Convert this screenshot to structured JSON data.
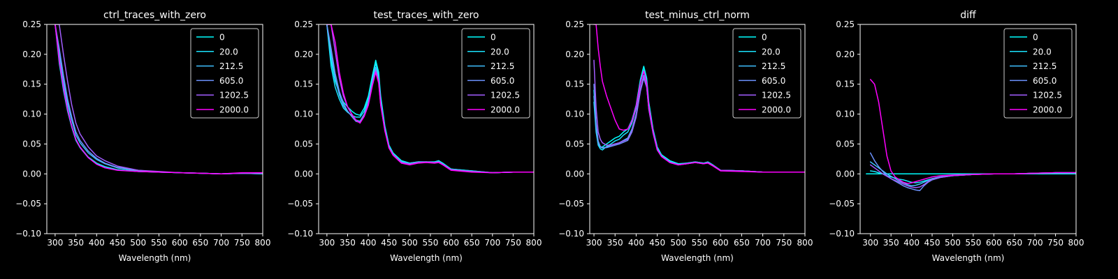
{
  "figure": {
    "background": "#000000",
    "foreground": "#ffffff"
  },
  "legend_labels": [
    "0",
    "20.0",
    "212.5",
    "605.0",
    "1202.5",
    "2000.0"
  ],
  "series_colors": [
    "#00ffff",
    "#1ae5ff",
    "#3fc0ff",
    "#6c93ff",
    "#a25dff",
    "#ff00ff"
  ],
  "chart_data": [
    {
      "type": "line",
      "title": "ctrl_traces_with_zero",
      "xlabel": "Wavelength (nm)",
      "ylabel": "",
      "xlim": [
        280,
        800
      ],
      "ylim": [
        -0.1,
        0.25
      ],
      "xticks": [
        300,
        350,
        400,
        450,
        500,
        550,
        600,
        650,
        700,
        750,
        800
      ],
      "yticks": [
        -0.1,
        -0.05,
        0.0,
        0.05,
        0.1,
        0.15,
        0.2,
        0.25
      ],
      "xtick_labels": [
        "300",
        "350",
        "400",
        "450",
        "500",
        "550",
        "600",
        "650",
        "700",
        "750",
        "800"
      ],
      "ytick_labels": [
        "−0.10",
        "−0.05",
        "0.00",
        "0.05",
        "0.10",
        "0.15",
        "0.20",
        "0.25"
      ],
      "grid": false,
      "legend": "upper right",
      "x": [
        300,
        310,
        320,
        330,
        340,
        350,
        360,
        380,
        400,
        420,
        450,
        500,
        550,
        600,
        650,
        700,
        750,
        800
      ],
      "series": [
        {
          "name": "0",
          "values": [
            0.25,
            0.2,
            0.15,
            0.11,
            0.08,
            0.058,
            0.045,
            0.028,
            0.018,
            0.012,
            0.007,
            0.004,
            0.003,
            0.002,
            0.001,
            0.0,
            0.001,
            0.0
          ]
        },
        {
          "name": "20.0",
          "values": [
            0.25,
            0.185,
            0.14,
            0.105,
            0.078,
            0.056,
            0.044,
            0.027,
            0.017,
            0.012,
            0.007,
            0.004,
            0.003,
            0.002,
            0.001,
            0.0,
            0.001,
            0.0
          ]
        },
        {
          "name": "212.5",
          "values": [
            0.25,
            0.2,
            0.155,
            0.118,
            0.09,
            0.065,
            0.052,
            0.035,
            0.024,
            0.017,
            0.01,
            0.005,
            0.003,
            0.002,
            0.001,
            0.0,
            0.001,
            0.001
          ]
        },
        {
          "name": "605.0",
          "values": [
            0.25,
            0.21,
            0.165,
            0.125,
            0.095,
            0.07,
            0.056,
            0.038,
            0.026,
            0.018,
            0.011,
            0.006,
            0.003,
            0.002,
            0.001,
            0.0,
            0.001,
            0.001
          ]
        },
        {
          "name": "1202.5",
          "values": [
            0.25,
            0.25,
            0.2,
            0.155,
            0.115,
            0.085,
            0.067,
            0.045,
            0.03,
            0.022,
            0.013,
            0.006,
            0.004,
            0.002,
            0.001,
            0.0,
            0.001,
            0.001
          ]
        },
        {
          "name": "2000.0",
          "values": [
            0.25,
            0.19,
            0.145,
            0.108,
            0.08,
            0.058,
            0.045,
            0.027,
            0.016,
            0.01,
            0.006,
            0.004,
            0.003,
            0.002,
            0.001,
            0.0,
            0.002,
            0.002
          ]
        }
      ]
    },
    {
      "type": "line",
      "title": "test_traces_with_zero",
      "xlabel": "Wavelength (nm)",
      "ylabel": "",
      "xlim": [
        280,
        800
      ],
      "ylim": [
        -0.1,
        0.25
      ],
      "xticks": [
        300,
        350,
        400,
        450,
        500,
        550,
        600,
        650,
        700,
        750,
        800
      ],
      "yticks": [
        -0.1,
        -0.05,
        0.0,
        0.05,
        0.1,
        0.15,
        0.2,
        0.25
      ],
      "xtick_labels": [
        "300",
        "350",
        "400",
        "450",
        "500",
        "550",
        "600",
        "650",
        "700",
        "750",
        "800"
      ],
      "ytick_labels": [
        "−0.10",
        "−0.05",
        "0.00",
        "0.05",
        "0.10",
        "0.15",
        "0.20",
        "0.25"
      ],
      "grid": false,
      "legend": "upper right",
      "x": [
        300,
        310,
        320,
        330,
        340,
        350,
        360,
        370,
        380,
        390,
        400,
        410,
        418,
        425,
        430,
        440,
        450,
        460,
        480,
        500,
        520,
        540,
        560,
        570,
        580,
        600,
        650,
        700,
        750,
        800
      ],
      "series": [
        {
          "name": "0",
          "values": [
            0.25,
            0.19,
            0.155,
            0.135,
            0.12,
            0.112,
            0.105,
            0.1,
            0.098,
            0.11,
            0.13,
            0.165,
            0.19,
            0.17,
            0.13,
            0.08,
            0.048,
            0.035,
            0.022,
            0.018,
            0.02,
            0.02,
            0.02,
            0.022,
            0.018,
            0.008,
            0.005,
            0.002,
            0.003,
            0.003
          ]
        },
        {
          "name": "20.0",
          "values": [
            0.25,
            0.18,
            0.145,
            0.125,
            0.11,
            0.103,
            0.098,
            0.095,
            0.095,
            0.105,
            0.125,
            0.16,
            0.185,
            0.165,
            0.125,
            0.078,
            0.047,
            0.034,
            0.021,
            0.018,
            0.02,
            0.02,
            0.02,
            0.021,
            0.017,
            0.008,
            0.005,
            0.002,
            0.003,
            0.003
          ]
        },
        {
          "name": "212.5",
          "values": [
            0.25,
            0.2,
            0.16,
            0.132,
            0.114,
            0.104,
            0.097,
            0.09,
            0.088,
            0.1,
            0.12,
            0.155,
            0.178,
            0.16,
            0.12,
            0.075,
            0.045,
            0.033,
            0.02,
            0.017,
            0.02,
            0.02,
            0.019,
            0.02,
            0.016,
            0.007,
            0.004,
            0.002,
            0.003,
            0.003
          ]
        },
        {
          "name": "605.0",
          "values": [
            0.25,
            0.21,
            0.168,
            0.138,
            0.118,
            0.105,
            0.096,
            0.088,
            0.086,
            0.098,
            0.118,
            0.152,
            0.175,
            0.157,
            0.118,
            0.074,
            0.044,
            0.032,
            0.019,
            0.017,
            0.019,
            0.02,
            0.019,
            0.02,
            0.016,
            0.007,
            0.004,
            0.002,
            0.003,
            0.003
          ]
        },
        {
          "name": "1202.5",
          "values": [
            0.25,
            0.25,
            0.205,
            0.16,
            0.13,
            0.112,
            0.1,
            0.09,
            0.085,
            0.097,
            0.115,
            0.15,
            0.172,
            0.155,
            0.116,
            0.073,
            0.044,
            0.032,
            0.019,
            0.016,
            0.019,
            0.02,
            0.019,
            0.02,
            0.016,
            0.007,
            0.004,
            0.002,
            0.003,
            0.003
          ]
        },
        {
          "name": "2000.0",
          "values": [
            0.25,
            0.25,
            0.22,
            0.17,
            0.135,
            0.112,
            0.1,
            0.09,
            0.085,
            0.096,
            0.115,
            0.148,
            0.17,
            0.152,
            0.115,
            0.072,
            0.043,
            0.031,
            0.018,
            0.015,
            0.018,
            0.019,
            0.018,
            0.019,
            0.015,
            0.006,
            0.003,
            0.002,
            0.003,
            0.003
          ]
        }
      ]
    },
    {
      "type": "line",
      "title": "test_minus_ctrl_norm",
      "xlabel": "Wavelength (nm)",
      "ylabel": "",
      "xlim": [
        290,
        800
      ],
      "ylim": [
        -0.1,
        0.25
      ],
      "xticks": [
        300,
        350,
        400,
        450,
        500,
        550,
        600,
        650,
        700,
        750,
        800
      ],
      "yticks": [
        -0.1,
        -0.05,
        0.0,
        0.05,
        0.1,
        0.15,
        0.2,
        0.25
      ],
      "xtick_labels": [
        "300",
        "350",
        "400",
        "450",
        "500",
        "550",
        "600",
        "650",
        "700",
        "750",
        "800"
      ],
      "ytick_labels": [
        "−0.10",
        "−0.05",
        "0.00",
        "0.05",
        "0.10",
        "0.15",
        "0.20",
        "0.25"
      ],
      "grid": false,
      "legend": "upper right",
      "x": [
        300,
        305,
        310,
        315,
        320,
        330,
        340,
        350,
        360,
        370,
        380,
        390,
        400,
        410,
        418,
        425,
        430,
        440,
        450,
        460,
        480,
        500,
        520,
        540,
        560,
        570,
        580,
        600,
        650,
        700,
        750,
        800
      ],
      "series": [
        {
          "name": "0",
          "values": [
            0.14,
            0.08,
            0.052,
            0.045,
            0.045,
            0.05,
            0.055,
            0.06,
            0.063,
            0.07,
            0.075,
            0.09,
            0.115,
            0.158,
            0.18,
            0.16,
            0.12,
            0.075,
            0.045,
            0.032,
            0.022,
            0.017,
            0.018,
            0.02,
            0.018,
            0.02,
            0.016,
            0.006,
            0.005,
            0.003,
            0.003,
            0.003
          ]
        },
        {
          "name": "20.0",
          "values": [
            0.12,
            0.07,
            0.048,
            0.042,
            0.04,
            0.046,
            0.05,
            0.055,
            0.058,
            0.065,
            0.07,
            0.085,
            0.11,
            0.152,
            0.174,
            0.155,
            0.115,
            0.072,
            0.043,
            0.031,
            0.021,
            0.016,
            0.018,
            0.02,
            0.018,
            0.019,
            0.015,
            0.006,
            0.005,
            0.003,
            0.003,
            0.003
          ]
        },
        {
          "name": "212.5",
          "values": [
            0.13,
            0.075,
            0.05,
            0.045,
            0.043,
            0.045,
            0.048,
            0.05,
            0.052,
            0.056,
            0.06,
            0.075,
            0.1,
            0.142,
            0.165,
            0.148,
            0.11,
            0.07,
            0.041,
            0.03,
            0.02,
            0.016,
            0.017,
            0.02,
            0.017,
            0.019,
            0.015,
            0.006,
            0.005,
            0.003,
            0.003,
            0.003
          ]
        },
        {
          "name": "605.0",
          "values": [
            0.15,
            0.085,
            0.055,
            0.046,
            0.044,
            0.044,
            0.046,
            0.048,
            0.05,
            0.053,
            0.056,
            0.07,
            0.095,
            0.138,
            0.16,
            0.145,
            0.108,
            0.068,
            0.04,
            0.029,
            0.019,
            0.015,
            0.017,
            0.019,
            0.017,
            0.019,
            0.015,
            0.006,
            0.005,
            0.003,
            0.003,
            0.003
          ]
        },
        {
          "name": "1202.5",
          "values": [
            0.19,
            0.11,
            0.07,
            0.058,
            0.052,
            0.048,
            0.048,
            0.05,
            0.052,
            0.055,
            0.058,
            0.072,
            0.098,
            0.14,
            0.162,
            0.146,
            0.11,
            0.069,
            0.04,
            0.029,
            0.019,
            0.015,
            0.017,
            0.019,
            0.017,
            0.019,
            0.015,
            0.006,
            0.005,
            0.003,
            0.003,
            0.003
          ]
        },
        {
          "name": "2000.0",
          "values": [
            0.25,
            0.25,
            0.21,
            0.18,
            0.155,
            0.13,
            0.11,
            0.09,
            0.075,
            0.073,
            0.075,
            0.088,
            0.113,
            0.152,
            0.172,
            0.152,
            0.113,
            0.07,
            0.041,
            0.029,
            0.019,
            0.015,
            0.017,
            0.019,
            0.017,
            0.018,
            0.014,
            0.005,
            0.004,
            0.003,
            0.003,
            0.003
          ]
        }
      ]
    },
    {
      "type": "line",
      "title": "diff",
      "xlabel": "Wavelength (nm)",
      "ylabel": "",
      "xlim": [
        275,
        800
      ],
      "ylim": [
        -0.1,
        0.25
      ],
      "xticks": [
        300,
        350,
        400,
        450,
        500,
        550,
        600,
        650,
        700,
        750,
        800
      ],
      "yticks": [
        -0.1,
        -0.05,
        0.0,
        0.05,
        0.1,
        0.15,
        0.2,
        0.25
      ],
      "xtick_labels": [
        "300",
        "350",
        "400",
        "450",
        "500",
        "550",
        "600",
        "650",
        "700",
        "750",
        "800"
      ],
      "ytick_labels": [
        "−0.10",
        "−0.05",
        "0.00",
        "0.05",
        "0.10",
        "0.15",
        "0.20",
        "0.25"
      ],
      "grid": false,
      "legend": "upper right",
      "x": [
        290,
        300,
        310,
        320,
        330,
        340,
        350,
        360,
        370,
        380,
        390,
        400,
        410,
        420,
        430,
        440,
        450,
        470,
        500,
        550,
        600,
        650,
        700,
        750,
        800
      ],
      "series": [
        {
          "name": "0",
          "values": [
            0.0,
            0.0,
            0.0,
            0.0,
            0.0,
            0.0,
            0.0,
            0.0,
            0.0,
            0.0,
            0.0,
            0.0,
            0.0,
            0.0,
            0.0,
            0.0,
            0.0,
            0.0,
            0.0,
            0.0,
            0.0,
            0.0,
            0.0,
            0.0,
            0.0
          ]
        },
        {
          "name": "20.0",
          "values": [
            null,
            0.005,
            0.004,
            0.002,
            0.0,
            -0.003,
            -0.005,
            -0.007,
            -0.009,
            -0.01,
            -0.012,
            -0.014,
            -0.015,
            -0.014,
            -0.012,
            -0.01,
            -0.008,
            -0.005,
            -0.003,
            -0.001,
            0.0,
            0.0,
            0.001,
            0.002,
            0.002
          ]
        },
        {
          "name": "212.5",
          "values": [
            null,
            0.02,
            0.015,
            0.01,
            0.005,
            0.0,
            -0.004,
            -0.008,
            -0.012,
            -0.015,
            -0.018,
            -0.02,
            -0.019,
            -0.017,
            -0.014,
            -0.011,
            -0.008,
            -0.005,
            -0.003,
            -0.001,
            0.0,
            0.0,
            0.001,
            0.002,
            0.002
          ]
        },
        {
          "name": "605.0",
          "values": [
            null,
            0.035,
            0.022,
            0.012,
            0.004,
            -0.003,
            -0.008,
            -0.012,
            -0.016,
            -0.02,
            -0.023,
            -0.025,
            -0.027,
            -0.028,
            -0.02,
            -0.014,
            -0.01,
            -0.006,
            -0.003,
            -0.001,
            0.0,
            0.0,
            0.001,
            0.002,
            0.002
          ]
        },
        {
          "name": "1202.5",
          "values": [
            null,
            0.015,
            0.01,
            0.005,
            0.0,
            -0.004,
            -0.008,
            -0.011,
            -0.014,
            -0.017,
            -0.02,
            -0.022,
            -0.023,
            -0.022,
            -0.018,
            -0.013,
            -0.009,
            -0.006,
            -0.003,
            -0.001,
            0.0,
            0.0,
            0.001,
            0.002,
            0.002
          ]
        },
        {
          "name": "2000.0",
          "values": [
            null,
            0.158,
            0.15,
            0.12,
            0.075,
            0.03,
            0.005,
            -0.005,
            -0.01,
            -0.014,
            -0.016,
            -0.015,
            -0.013,
            -0.011,
            -0.009,
            -0.007,
            -0.005,
            -0.003,
            -0.002,
            -0.001,
            0.0,
            0.0,
            0.001,
            0.002,
            0.002
          ]
        }
      ]
    }
  ]
}
